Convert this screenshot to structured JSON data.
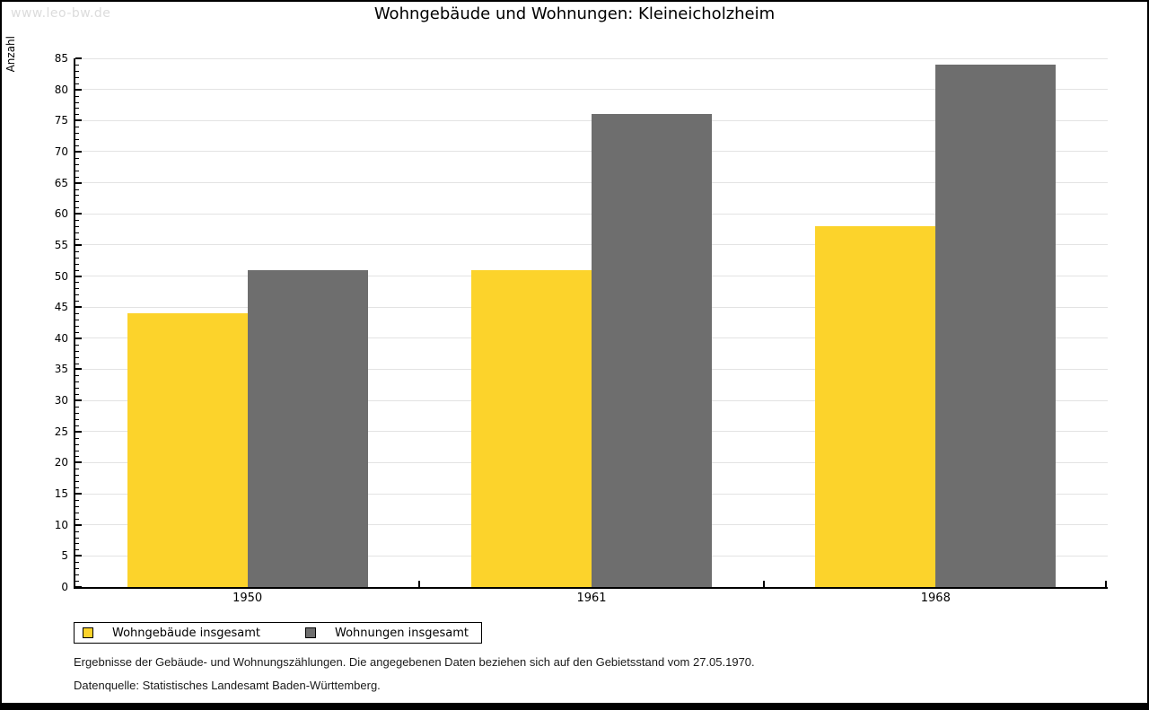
{
  "watermark": "www.leo-bw.de",
  "chart_data": {
    "type": "bar",
    "title": "Wohngebäude und Wohnungen: Kleineicholzheim",
    "ylabel": "Anzahl",
    "xlabel": "",
    "categories": [
      "1950",
      "1961",
      "1968"
    ],
    "series": [
      {
        "name": "Wohngebäude insgesamt",
        "color": "#fcd32b",
        "values": [
          44,
          51,
          58
        ]
      },
      {
        "name": "Wohnungen insgesamt",
        "color": "#6e6e6e",
        "values": [
          51,
          76,
          84
        ]
      }
    ],
    "ylim": [
      0,
      85
    ],
    "ytick_step": 5,
    "minor_tick_step": 1,
    "grid": true,
    "legend_position": "bottom-left"
  },
  "footnotes": [
    "Ergebnisse der Gebäude- und Wohnungszählungen. Die angegebenen Daten beziehen sich auf den Gebietsstand vom 27.05.1970.",
    "Datenquelle: Statistisches Landesamt Baden-Württemberg."
  ]
}
